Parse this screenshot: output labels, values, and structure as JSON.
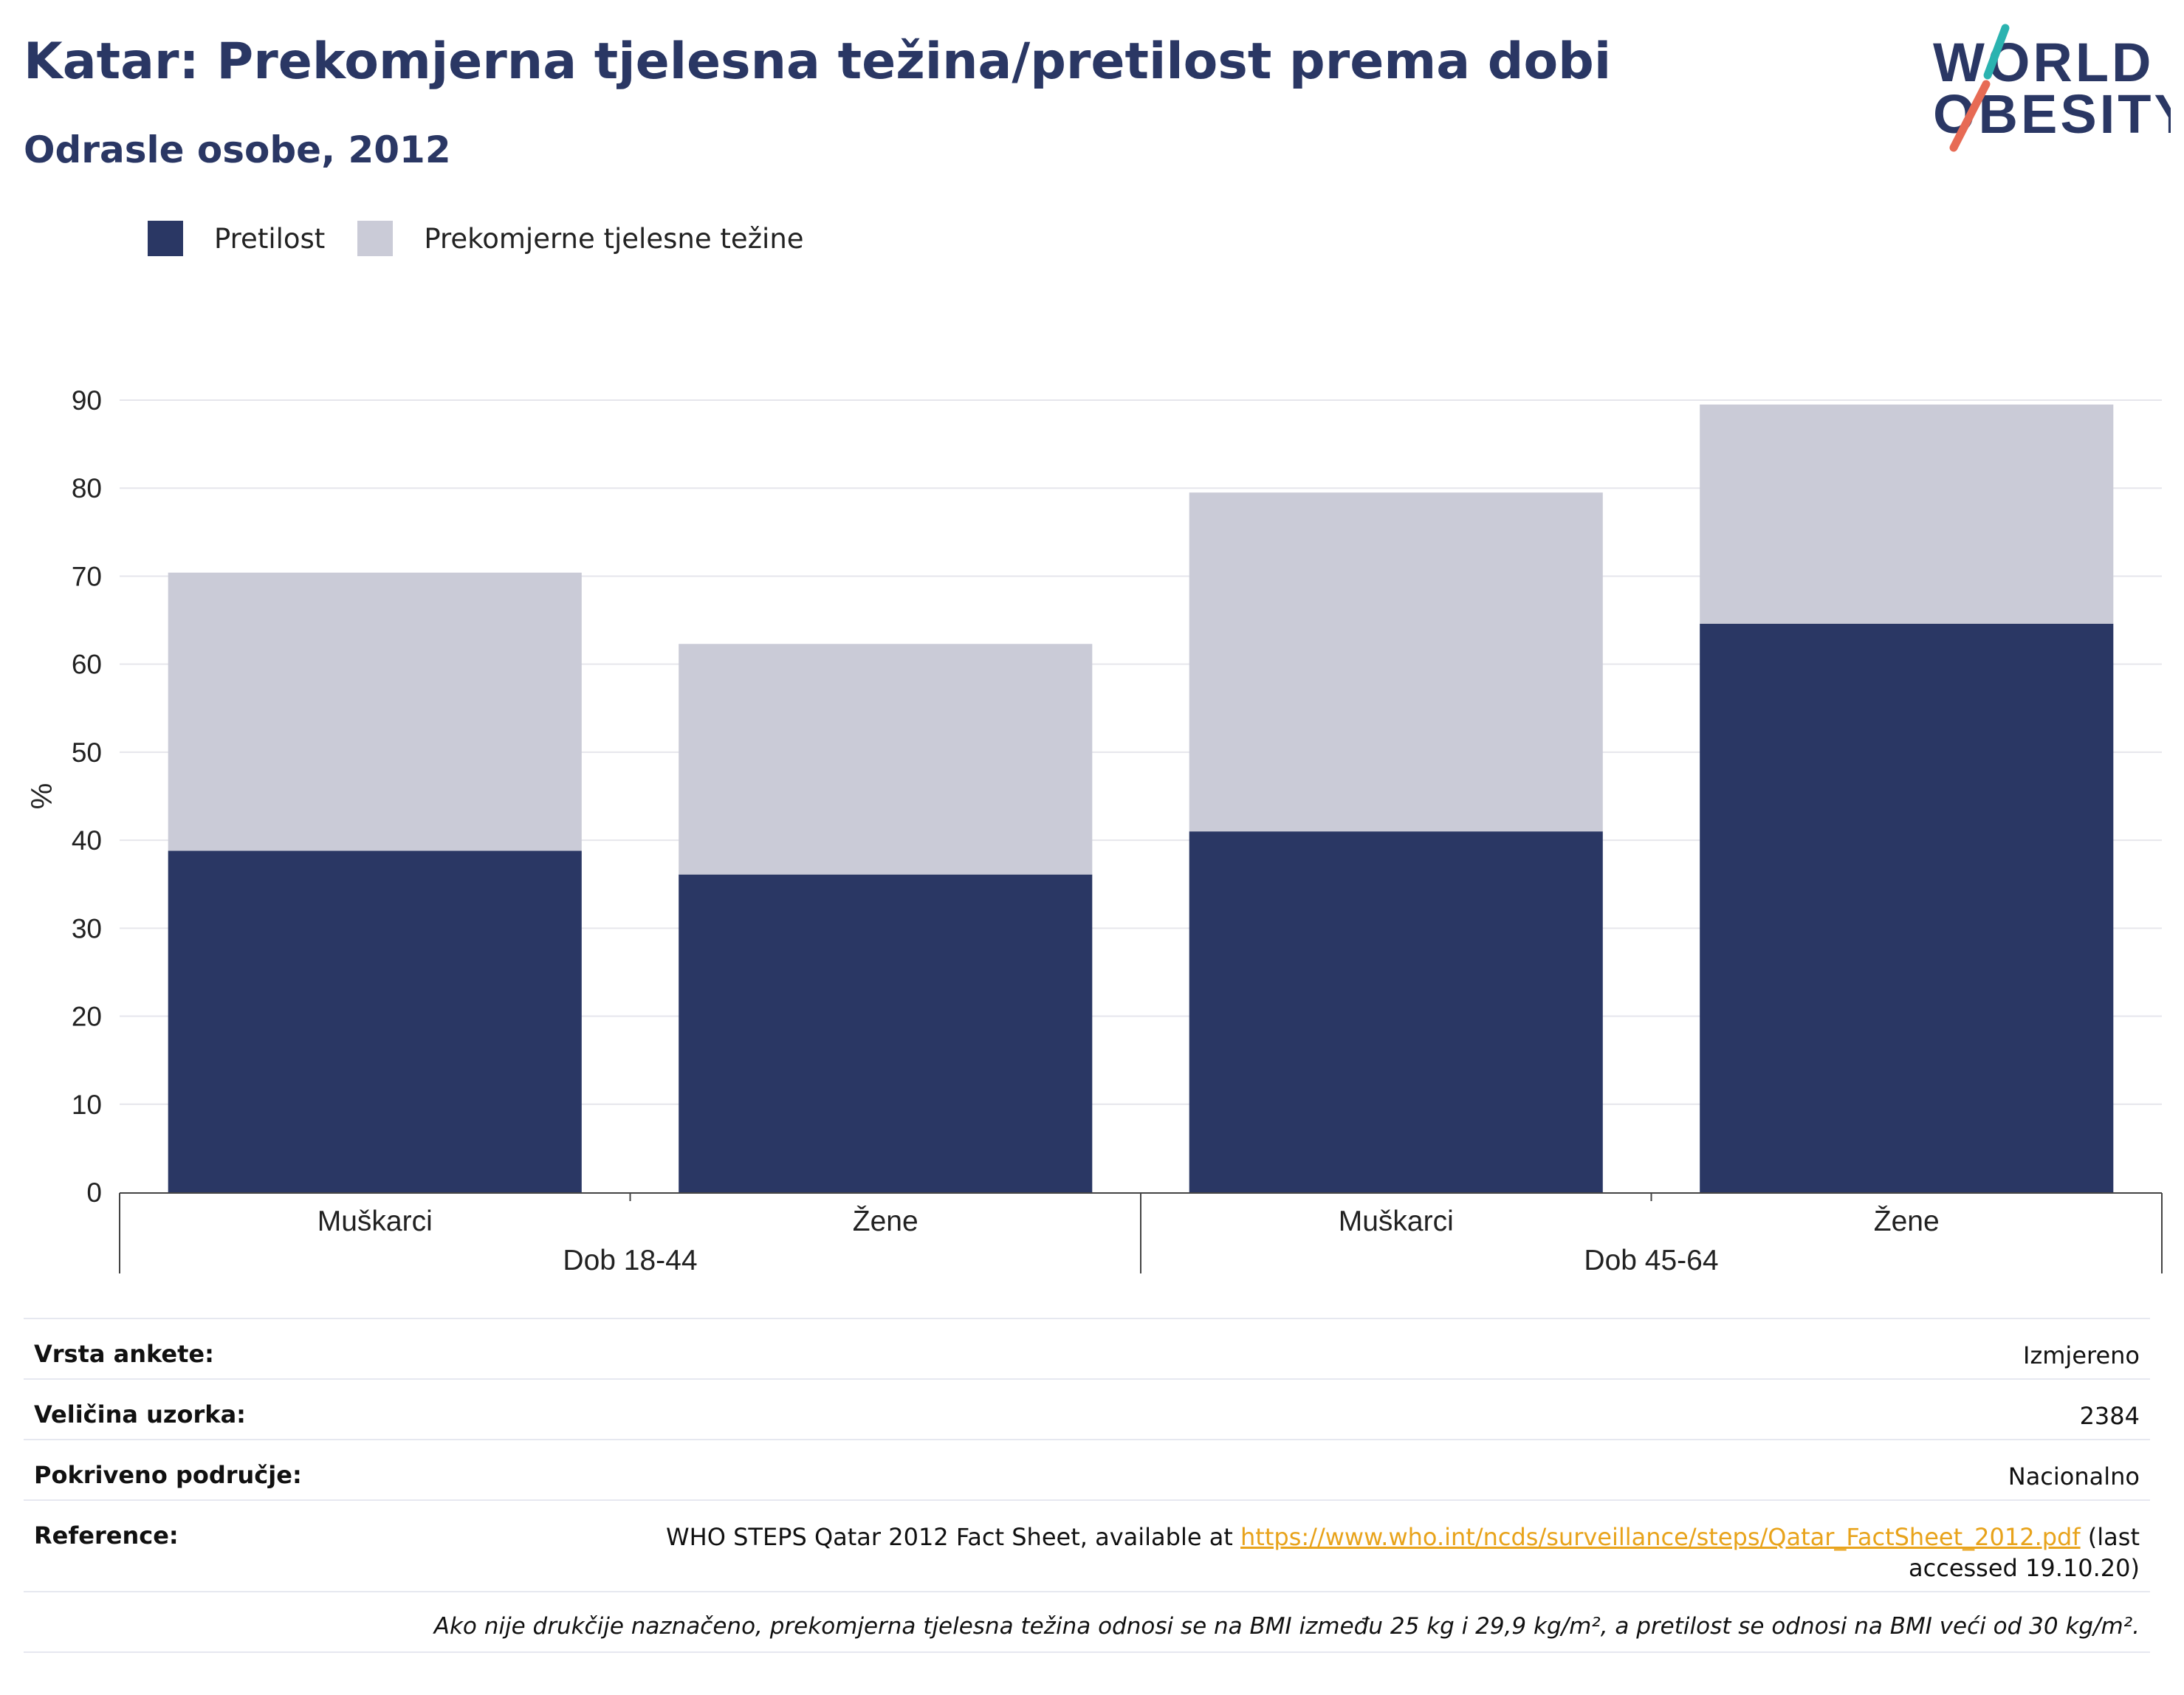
{
  "header": {
    "title": "Katar: Prekomjerna tjelesna težina/pretilost prema dobi",
    "subtitle": "Odrasle osobe, 2012"
  },
  "logo": {
    "line1": "WORLD",
    "line2": "OBESITY"
  },
  "colors": {
    "pretilost": "#2a3764",
    "prekomjerna": "#cacbd7",
    "title": "#2a3764",
    "link": "#e8a31b"
  },
  "chart_data": {
    "type": "bar",
    "stacked": true,
    "ylabel": "%",
    "ylim": [
      0,
      90
    ],
    "yticks": [
      0,
      10,
      20,
      30,
      40,
      50,
      60,
      70,
      80,
      90
    ],
    "grid": true,
    "legend_position": "top-left",
    "groups": [
      {
        "label": "Dob 18-44",
        "categories": [
          "Muškarci",
          "Žene"
        ]
      },
      {
        "label": "Dob 45-64",
        "categories": [
          "Muškarci",
          "Žene"
        ]
      }
    ],
    "categories": [
      "Muškarci",
      "Žene",
      "Muškarci",
      "Žene"
    ],
    "series": [
      {
        "name": "Pretilost",
        "values": [
          38.8,
          36.1,
          41.0,
          64.6
        ]
      },
      {
        "name": "Prekomjerne tjelesne težine",
        "values": [
          31.6,
          26.2,
          38.5,
          24.9
        ]
      }
    ]
  },
  "info": {
    "rows": [
      {
        "label": "Vrsta ankete:",
        "value": "Izmjereno"
      },
      {
        "label": "Veličina uzorka:",
        "value": "2384"
      },
      {
        "label": "Pokriveno područje:",
        "value": "Nacionalno"
      }
    ],
    "reference": {
      "label": "Reference:",
      "text_before": "WHO STEPS Qatar 2012 Fact Sheet, available at ",
      "link": "https://www.who.int/ncds/surveillance/steps/Qatar_FactSheet_2012.pdf",
      "text_after": " (last accessed 19.10.20)"
    },
    "note": "Ako nije drukčije naznačeno, prekomjerna tjelesna težina odnosi se na BMI između 25 kg i 29,9 kg/m², a pretilost se odnosi na BMI veći od 30 kg/m²."
  }
}
